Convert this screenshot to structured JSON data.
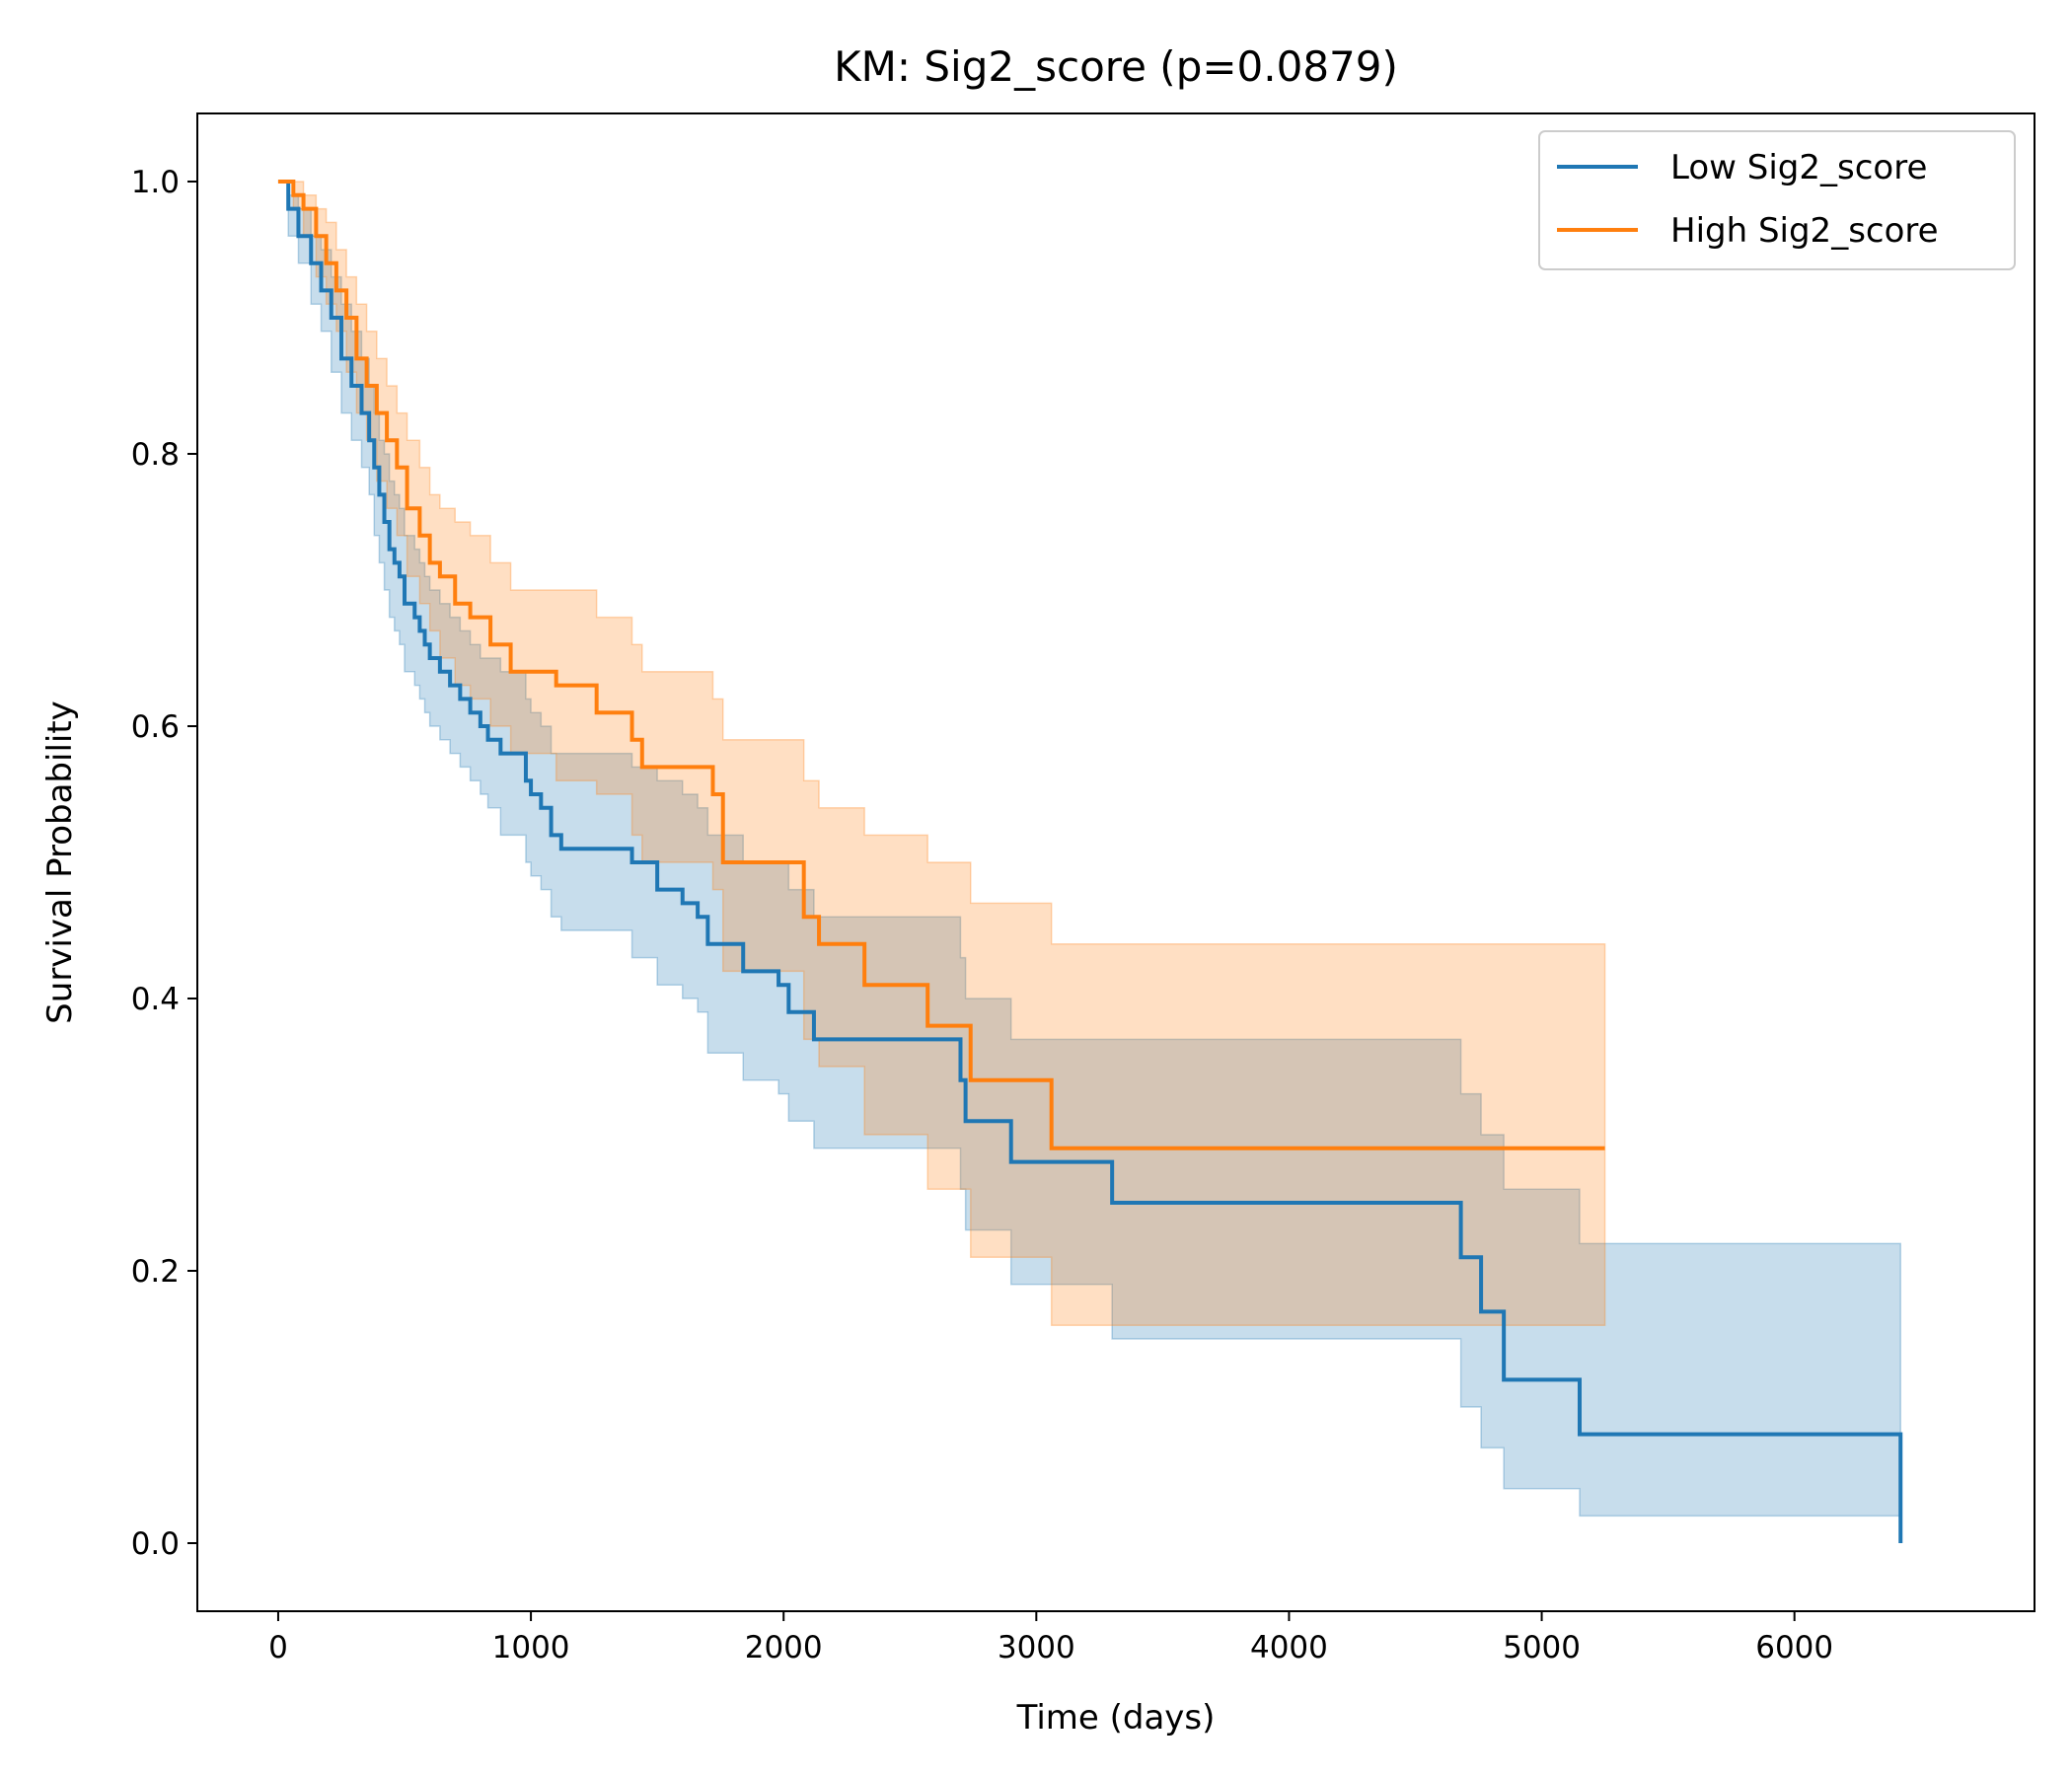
{
  "chart_data": {
    "type": "line",
    "title": "KM: Sig2_score (p=0.0879)",
    "xlabel": "Time (days)",
    "ylabel": "Survival Probability",
    "xlim": [
      -320,
      6950
    ],
    "ylim": [
      -0.05,
      1.05
    ],
    "xticks": [
      0,
      1000,
      2000,
      3000,
      4000,
      5000,
      6000
    ],
    "yticks": [
      0.0,
      0.2,
      0.4,
      0.6,
      0.8,
      1.0
    ],
    "xtick_labels": [
      "0",
      "1000",
      "2000",
      "3000",
      "4000",
      "5000",
      "6000"
    ],
    "ytick_labels": [
      "0.0",
      "0.2",
      "0.4",
      "0.6",
      "0.8",
      "1.0"
    ],
    "legend_position": "top-right",
    "grid": false,
    "series": [
      {
        "name": "Low Sig2_score",
        "color": "#1f77b4",
        "step": "post",
        "x": [
          0,
          40,
          80,
          130,
          170,
          210,
          250,
          290,
          330,
          360,
          380,
          400,
          420,
          440,
          460,
          480,
          500,
          540,
          560,
          580,
          600,
          640,
          680,
          720,
          760,
          800,
          830,
          880,
          930,
          980,
          1000,
          1040,
          1080,
          1120,
          1200,
          1400,
          1500,
          1600,
          1660,
          1700,
          1840,
          1980,
          2020,
          2120,
          2700,
          2720,
          2900,
          3300,
          4680,
          4760,
          4850,
          5150,
          6420
        ],
        "y": [
          1.0,
          0.98,
          0.96,
          0.94,
          0.92,
          0.9,
          0.87,
          0.85,
          0.83,
          0.81,
          0.79,
          0.77,
          0.75,
          0.73,
          0.72,
          0.71,
          0.69,
          0.68,
          0.67,
          0.66,
          0.65,
          0.64,
          0.63,
          0.62,
          0.61,
          0.6,
          0.59,
          0.58,
          0.58,
          0.56,
          0.55,
          0.54,
          0.52,
          0.51,
          0.51,
          0.5,
          0.48,
          0.47,
          0.46,
          0.44,
          0.42,
          0.41,
          0.39,
          0.37,
          0.34,
          0.31,
          0.28,
          0.25,
          0.21,
          0.17,
          0.12,
          0.08,
          0.0
        ],
        "ci_lower": [
          1.0,
          0.96,
          0.94,
          0.91,
          0.89,
          0.86,
          0.83,
          0.81,
          0.79,
          0.77,
          0.74,
          0.72,
          0.7,
          0.68,
          0.67,
          0.66,
          0.64,
          0.63,
          0.62,
          0.61,
          0.6,
          0.59,
          0.58,
          0.57,
          0.56,
          0.55,
          0.54,
          0.52,
          0.52,
          0.5,
          0.49,
          0.48,
          0.46,
          0.45,
          0.45,
          0.43,
          0.41,
          0.4,
          0.39,
          0.36,
          0.34,
          0.33,
          0.31,
          0.29,
          0.26,
          0.23,
          0.19,
          0.15,
          0.1,
          0.07,
          0.04,
          0.02,
          0.02
        ],
        "ci_upper": [
          1.0,
          0.99,
          0.98,
          0.96,
          0.95,
          0.93,
          0.91,
          0.89,
          0.87,
          0.85,
          0.83,
          0.81,
          0.8,
          0.78,
          0.77,
          0.76,
          0.74,
          0.73,
          0.72,
          0.71,
          0.7,
          0.69,
          0.68,
          0.67,
          0.66,
          0.65,
          0.65,
          0.64,
          0.64,
          0.62,
          0.61,
          0.6,
          0.58,
          0.58,
          0.58,
          0.57,
          0.56,
          0.55,
          0.54,
          0.52,
          0.5,
          0.5,
          0.48,
          0.46,
          0.43,
          0.4,
          0.37,
          0.37,
          0.33,
          0.3,
          0.26,
          0.22,
          0.22
        ]
      },
      {
        "name": "High Sig2_score",
        "color": "#ff7f0e",
        "step": "post",
        "x": [
          0,
          60,
          100,
          150,
          190,
          230,
          270,
          310,
          350,
          390,
          430,
          470,
          510,
          560,
          600,
          640,
          700,
          760,
          840,
          920,
          1100,
          1260,
          1400,
          1440,
          1720,
          1760,
          2080,
          2140,
          2320,
          2570,
          2740,
          3060,
          5250
        ],
        "y": [
          1.0,
          0.99,
          0.98,
          0.96,
          0.94,
          0.92,
          0.9,
          0.87,
          0.85,
          0.83,
          0.81,
          0.79,
          0.76,
          0.74,
          0.72,
          0.71,
          0.69,
          0.68,
          0.66,
          0.64,
          0.63,
          0.61,
          0.59,
          0.57,
          0.55,
          0.5,
          0.46,
          0.44,
          0.41,
          0.38,
          0.34,
          0.29,
          0.29
        ],
        "ci_lower": [
          1.0,
          0.98,
          0.96,
          0.93,
          0.91,
          0.89,
          0.86,
          0.83,
          0.81,
          0.78,
          0.76,
          0.74,
          0.71,
          0.69,
          0.67,
          0.65,
          0.63,
          0.62,
          0.6,
          0.58,
          0.56,
          0.55,
          0.52,
          0.5,
          0.48,
          0.42,
          0.37,
          0.35,
          0.3,
          0.26,
          0.21,
          0.16,
          0.16
        ],
        "ci_upper": [
          1.0,
          1.0,
          0.99,
          0.98,
          0.97,
          0.95,
          0.93,
          0.91,
          0.89,
          0.87,
          0.85,
          0.83,
          0.81,
          0.79,
          0.77,
          0.76,
          0.75,
          0.74,
          0.72,
          0.7,
          0.7,
          0.68,
          0.66,
          0.64,
          0.62,
          0.59,
          0.56,
          0.54,
          0.52,
          0.5,
          0.47,
          0.44,
          0.44
        ]
      }
    ]
  }
}
